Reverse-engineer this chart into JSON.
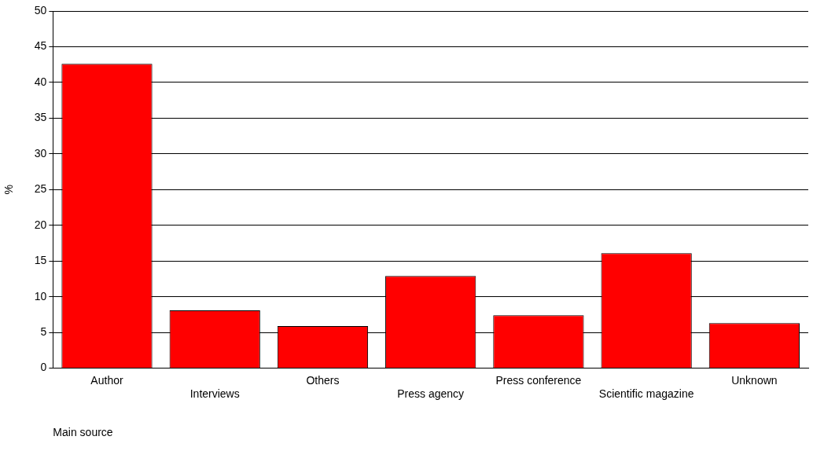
{
  "chart_data": {
    "type": "bar",
    "xlabel": "Main source",
    "ylabel": "%",
    "categories": [
      "Author",
      "Interviews",
      "Others",
      "Press agency",
      "Press conference",
      "Scientific magazine",
      "Unknown"
    ],
    "values": [
      42.6,
      8.1,
      5.9,
      12.9,
      7.4,
      16.1,
      6.3
    ],
    "color": "#ff0000",
    "ylim": [
      0,
      50
    ],
    "yticks": [
      0,
      5,
      10,
      15,
      20,
      25,
      30,
      35,
      40,
      45,
      50
    ],
    "grid": "y",
    "legend": false
  }
}
